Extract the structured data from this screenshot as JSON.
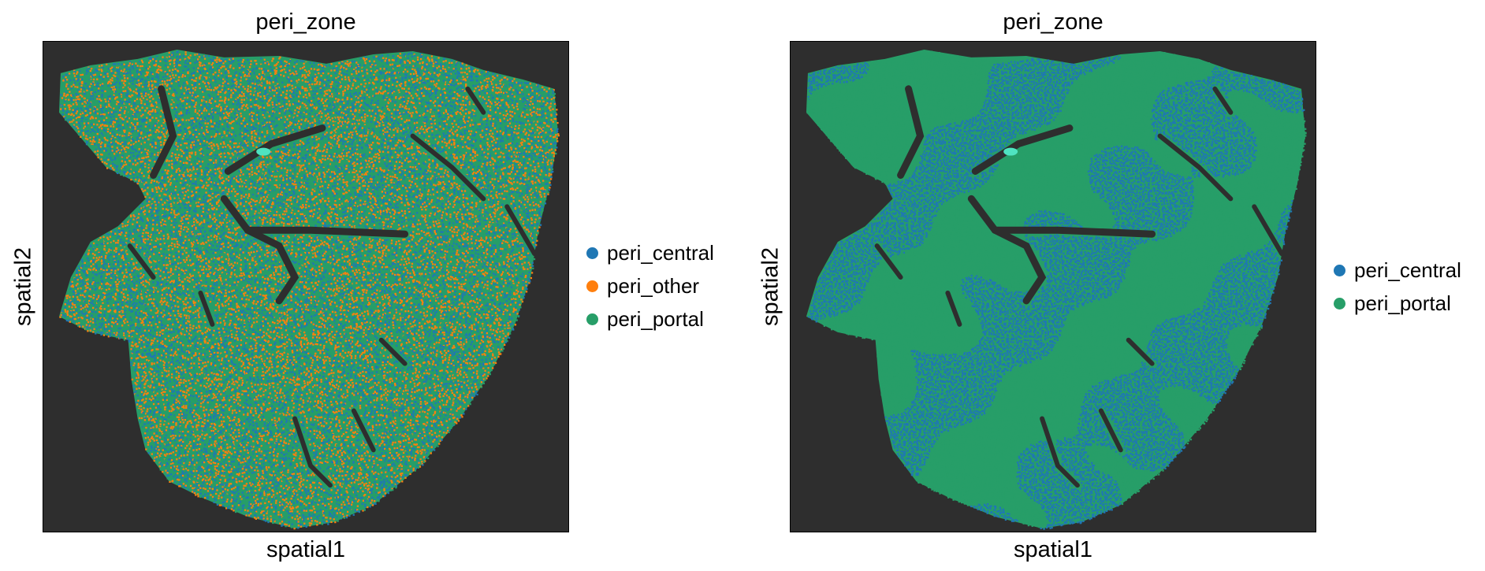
{
  "chart_data": [
    {
      "type": "scatter",
      "title": "peri_zone",
      "xlabel": "spatial1",
      "ylabel": "spatial2",
      "grid": false,
      "legend_placement": "right",
      "background": "#2e2e2e",
      "series": [
        {
          "name": "peri_central",
          "color": "#1f77b4",
          "share": 0.34
        },
        {
          "name": "peri_other",
          "color": "#ff7f0e",
          "share": 0.36
        },
        {
          "name": "peri_portal",
          "color": "#279e68",
          "share": 0.3
        }
      ]
    },
    {
      "type": "scatter",
      "title": "peri_zone",
      "xlabel": "spatial1",
      "ylabel": "spatial2",
      "grid": false,
      "legend_placement": "right",
      "background": "#2e2e2e",
      "series": [
        {
          "name": "peri_central",
          "color": "#1f77b4",
          "share": 0.45
        },
        {
          "name": "peri_portal",
          "color": "#279e68",
          "share": 0.55
        }
      ]
    }
  ]
}
